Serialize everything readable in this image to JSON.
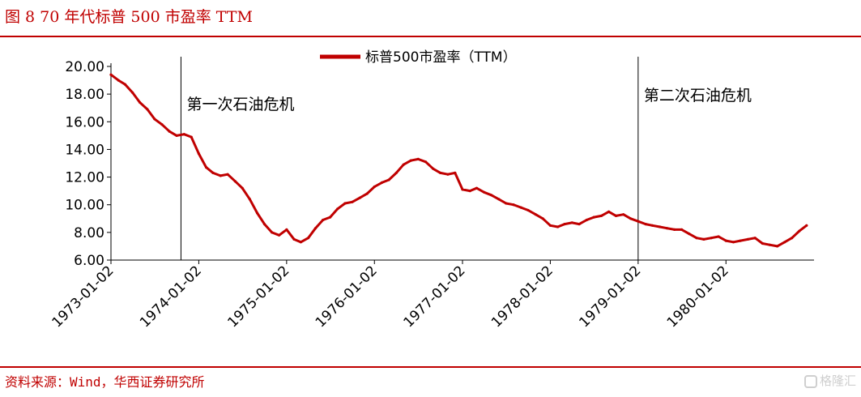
{
  "header": {
    "title": "图 8 70 年代标普 500 市盈率 TTM"
  },
  "footer": {
    "source": "资料来源：Wind，华西证券研究所",
    "watermark": "格隆汇"
  },
  "colors": {
    "accent": "#c00000",
    "series": "#c00000",
    "axis": "#000000"
  },
  "chart_data": {
    "type": "line",
    "legend": {
      "label": "标普500市盈率（TTM）",
      "placement": "top-center"
    },
    "grid": false,
    "ylim": [
      6,
      20
    ],
    "yticks": [
      "20.00",
      "18.00",
      "16.00",
      "14.00",
      "12.00",
      "10.00",
      "8.00",
      "6.00"
    ],
    "xlim": [
      "1973-01-02",
      "1981-01-02"
    ],
    "xticks": [
      "1973-01-02",
      "1974-01-02",
      "1975-01-02",
      "1976-01-02",
      "1977-01-02",
      "1978-01-02",
      "1979-01-02",
      "1980-01-02"
    ],
    "annotations": [
      {
        "label": "第一次石油危机",
        "x": "1973-10-20"
      },
      {
        "label": "第二次石油危机",
        "x": "1979-01-02"
      }
    ],
    "series": [
      {
        "name": "标普500市盈率（TTM）",
        "x": [
          "1973-01-02",
          "1973-02-02",
          "1973-03-02",
          "1973-04-02",
          "1973-05-02",
          "1973-06-02",
          "1973-07-02",
          "1973-08-02",
          "1973-09-02",
          "1973-10-02",
          "1973-11-02",
          "1973-12-02",
          "1974-01-02",
          "1974-02-02",
          "1974-03-02",
          "1974-04-02",
          "1974-05-02",
          "1974-06-02",
          "1974-07-02",
          "1974-08-02",
          "1974-09-02",
          "1974-10-02",
          "1974-11-02",
          "1974-12-02",
          "1975-01-02",
          "1975-02-02",
          "1975-03-02",
          "1975-04-02",
          "1975-05-02",
          "1975-06-02",
          "1975-07-02",
          "1975-08-02",
          "1975-09-02",
          "1975-10-02",
          "1975-11-02",
          "1975-12-02",
          "1976-01-02",
          "1976-02-02",
          "1976-03-02",
          "1976-04-02",
          "1976-05-02",
          "1976-06-02",
          "1976-07-02",
          "1976-08-02",
          "1976-09-02",
          "1976-10-02",
          "1976-11-02",
          "1976-12-02",
          "1977-01-02",
          "1977-02-02",
          "1977-03-02",
          "1977-04-02",
          "1977-05-02",
          "1977-06-02",
          "1977-07-02",
          "1977-08-02",
          "1977-09-02",
          "1977-10-02",
          "1977-11-02",
          "1977-12-02",
          "1978-01-02",
          "1978-02-02",
          "1978-03-02",
          "1978-04-02",
          "1978-05-02",
          "1978-06-02",
          "1978-07-02",
          "1978-08-02",
          "1978-09-02",
          "1978-10-02",
          "1978-11-02",
          "1978-12-02",
          "1979-01-02",
          "1979-02-02",
          "1979-03-02",
          "1979-04-02",
          "1979-05-02",
          "1979-06-02",
          "1979-07-02",
          "1979-08-02",
          "1979-09-02",
          "1979-10-02",
          "1979-11-02",
          "1979-12-02",
          "1980-01-02",
          "1980-02-02",
          "1980-03-02",
          "1980-04-02",
          "1980-05-02",
          "1980-06-02",
          "1980-07-02",
          "1980-08-02",
          "1980-09-02",
          "1980-10-02",
          "1980-11-02",
          "1980-12-02"
        ],
        "y": [
          19.4,
          19.0,
          18.7,
          18.1,
          17.4,
          16.9,
          16.2,
          15.8,
          15.3,
          15.0,
          15.1,
          14.9,
          13.7,
          12.7,
          12.3,
          12.1,
          12.2,
          11.7,
          11.2,
          10.4,
          9.4,
          8.6,
          8.0,
          7.8,
          8.2,
          7.5,
          7.3,
          7.6,
          8.3,
          8.9,
          9.1,
          9.7,
          10.1,
          10.2,
          10.5,
          10.8,
          11.3,
          11.6,
          11.8,
          12.3,
          12.9,
          13.2,
          13.3,
          13.1,
          12.6,
          12.3,
          12.2,
          12.3,
          11.1,
          11.0,
          11.2,
          10.9,
          10.7,
          10.4,
          10.1,
          10.0,
          9.8,
          9.6,
          9.3,
          9.0,
          8.5,
          8.4,
          8.6,
          8.7,
          8.6,
          8.9,
          9.1,
          9.2,
          9.5,
          9.2,
          9.3,
          9.0,
          8.8,
          8.6,
          8.5,
          8.4,
          8.3,
          8.2,
          8.2,
          7.9,
          7.6,
          7.5,
          7.6,
          7.7,
          7.4,
          7.3,
          7.4,
          7.5,
          7.6,
          7.2,
          7.1,
          7.0,
          7.3,
          7.6,
          8.1,
          8.5
        ]
      }
    ]
  }
}
